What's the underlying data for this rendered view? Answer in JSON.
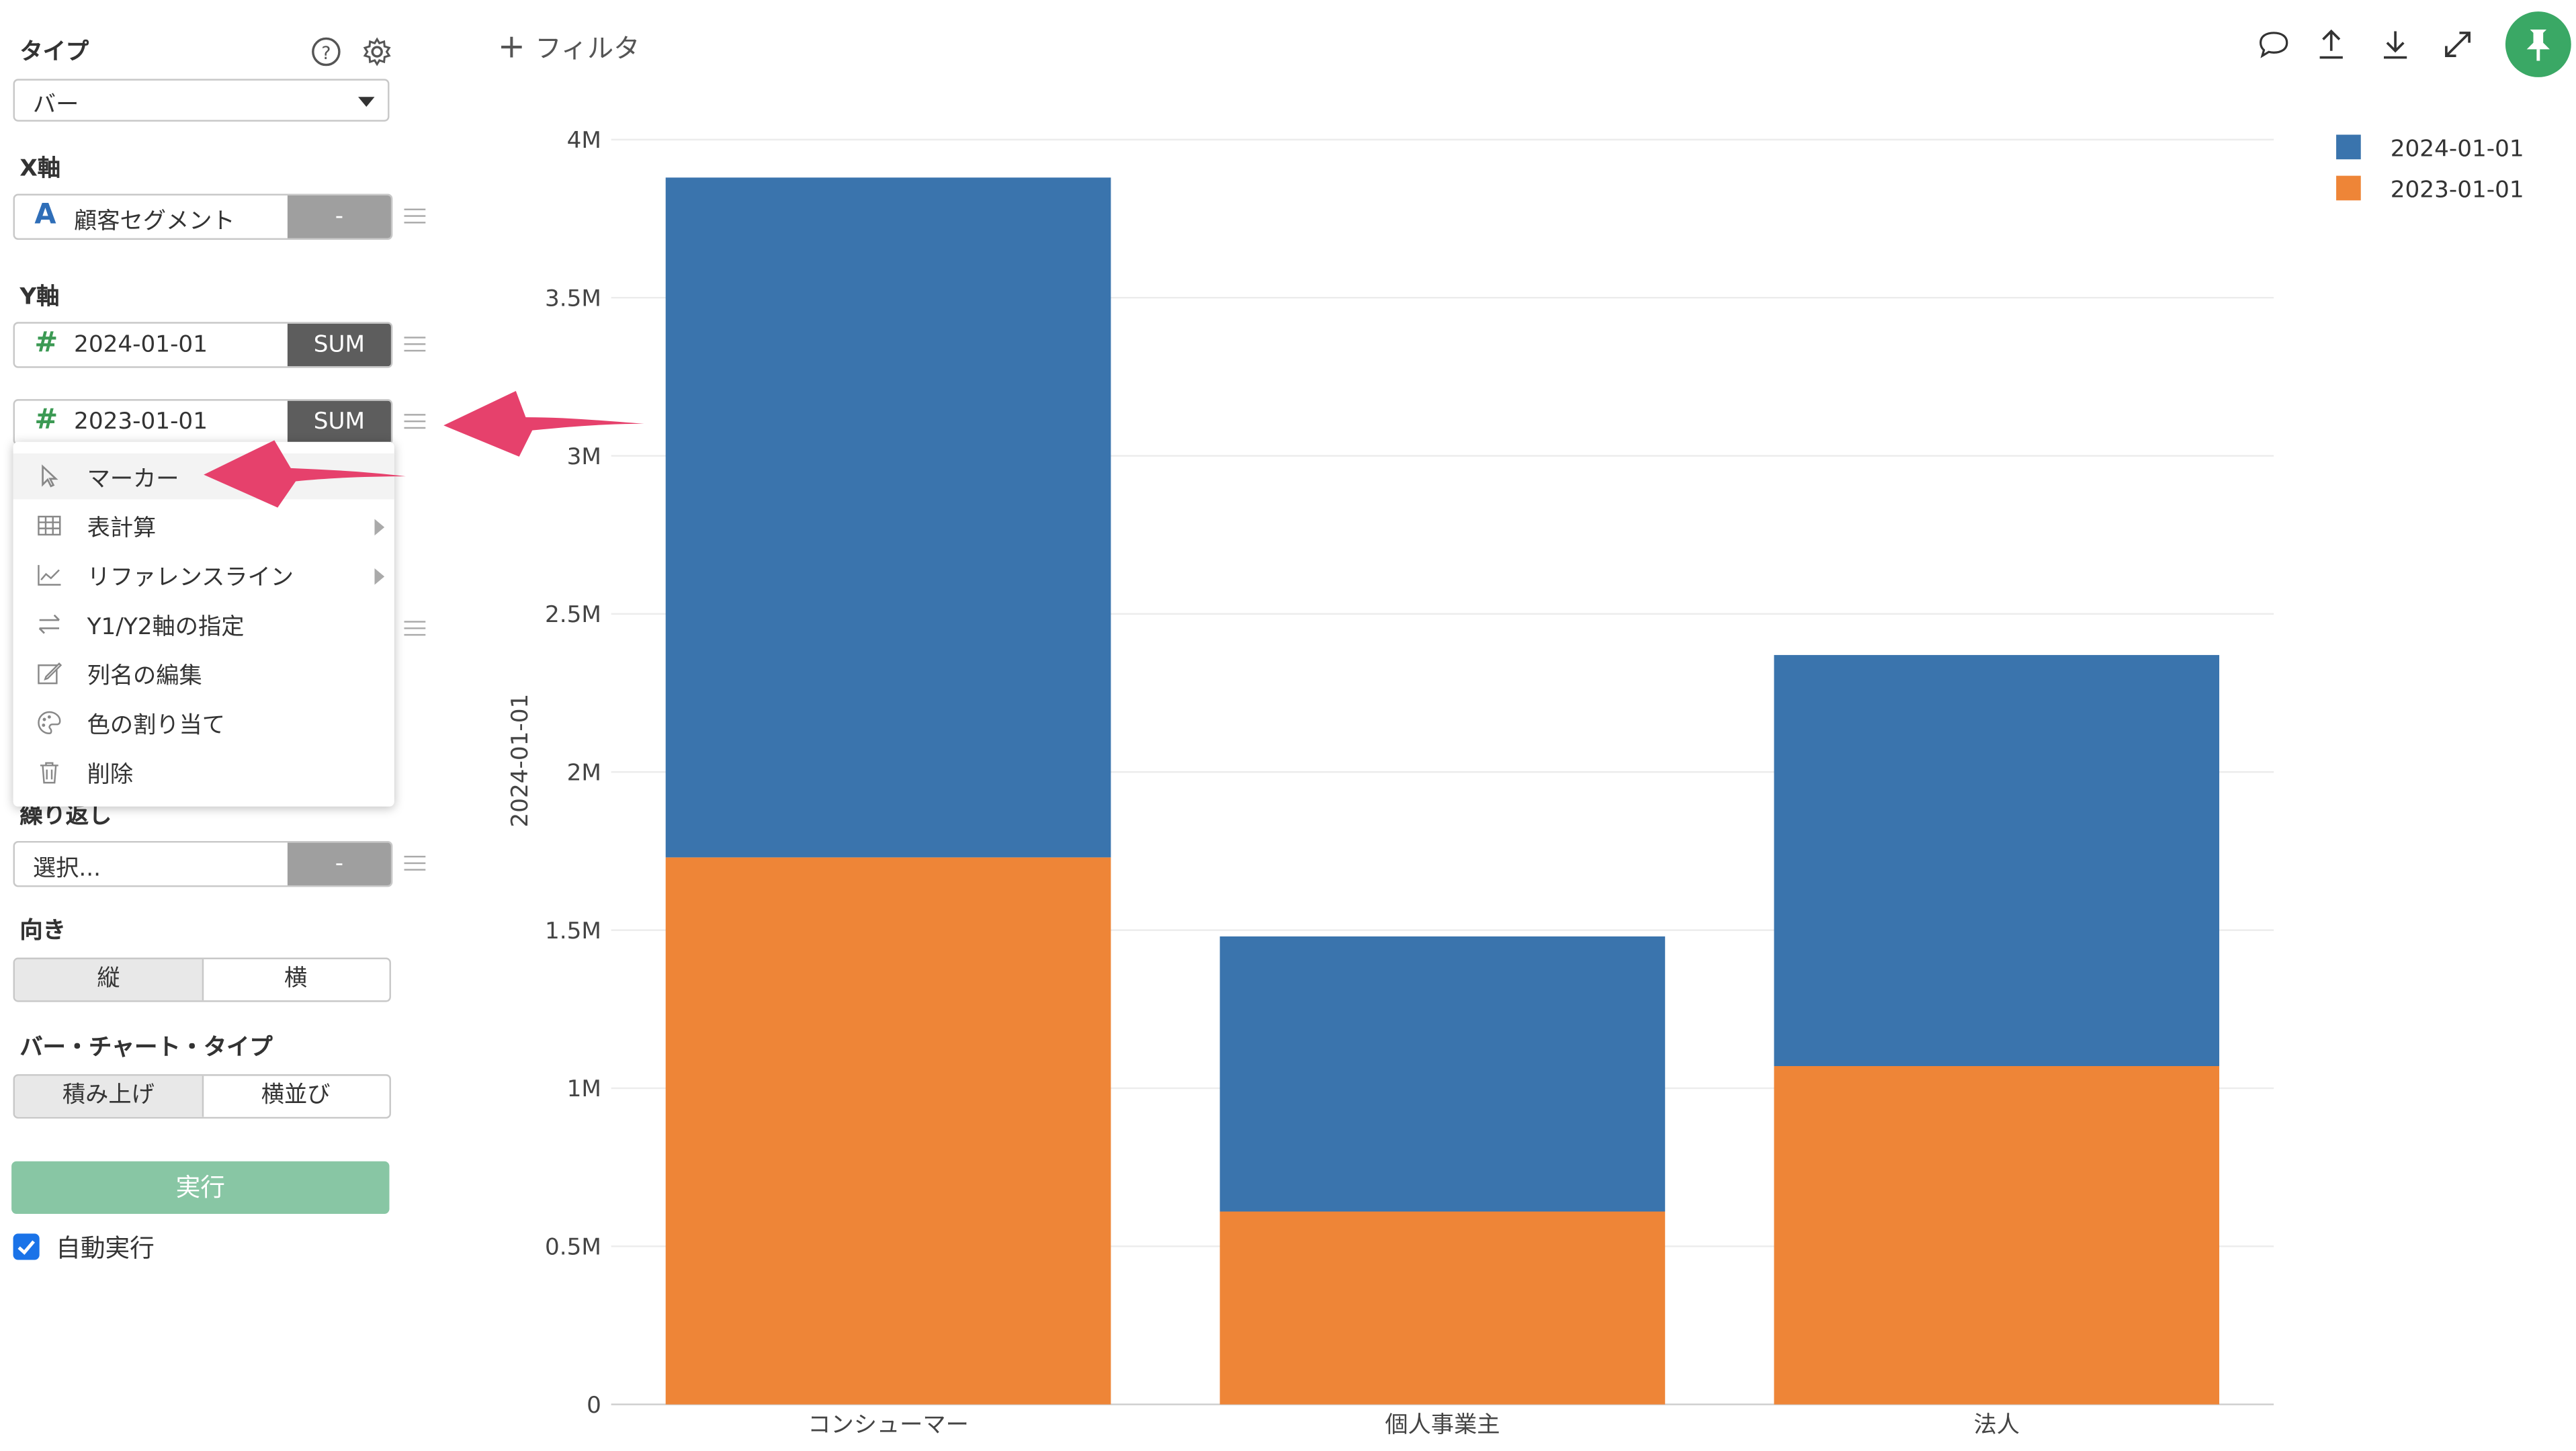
{
  "sidebar": {
    "type_label": "タイプ",
    "type_value": "バー",
    "x_axis_label": "X軸",
    "x_field": {
      "icon": "A",
      "name": "顧客セグメント",
      "agg": "-"
    },
    "y_axis_label": "Y軸",
    "y_fields": [
      {
        "icon": "#",
        "name": "2024-01-01",
        "agg": "SUM"
      },
      {
        "icon": "#",
        "name": "2023-01-01",
        "agg": "SUM"
      }
    ],
    "repeat_label": "繰り返し",
    "repeat_field": {
      "placeholder": "選択...",
      "agg": "-"
    },
    "orientation_label": "向き",
    "orientation_options": [
      "縦",
      "横"
    ],
    "bar_type_label": "バー・チャート・タイプ",
    "bar_type_options": [
      "積み上げ",
      "横並び"
    ],
    "run_label": "実行",
    "auto_run_label": "自動実行",
    "auto_run_checked": true
  },
  "context_menu": {
    "items": [
      {
        "icon": "pointer-icon",
        "label": "マーカー",
        "submenu": false
      },
      {
        "icon": "table-icon",
        "label": "表計算",
        "submenu": true
      },
      {
        "icon": "line-chart-icon",
        "label": "リファレンスライン",
        "submenu": true
      },
      {
        "icon": "swap-icon",
        "label": "Y1/Y2軸の指定",
        "submenu": false
      },
      {
        "icon": "edit-icon",
        "label": "列名の編集",
        "submenu": false
      },
      {
        "icon": "palette-icon",
        "label": "色の割り当て",
        "submenu": false
      },
      {
        "icon": "trash-icon",
        "label": "削除",
        "submenu": false
      }
    ]
  },
  "toolbar": {
    "filter_label": "フィルタ",
    "icons": [
      "comment-icon",
      "upload-icon",
      "download-icon",
      "expand-icon",
      "pin-icon"
    ]
  },
  "colors": {
    "series_2024": "#3a74ad",
    "series_2023": "#ee8537",
    "run_button": "#88c6a4",
    "pin_button": "#3aa865",
    "arrow": "#e6416c"
  },
  "chart_data": {
    "type": "bar",
    "stacked": true,
    "categories": [
      "コンシューマー",
      "個人事業主",
      "法人"
    ],
    "series": [
      {
        "name": "2024-01-01",
        "values": [
          2150000,
          870000,
          1300000
        ]
      },
      {
        "name": "2023-01-01",
        "values": [
          1730000,
          610000,
          1070000
        ]
      }
    ],
    "ylabel": "2024-01-01",
    "ylim": [
      0,
      4000000
    ],
    "yticks": [
      "0",
      "0.5M",
      "1M",
      "1.5M",
      "2M",
      "2.5M",
      "3M",
      "3.5M",
      "4M"
    ],
    "grid": true,
    "legend_position": "top-right"
  }
}
